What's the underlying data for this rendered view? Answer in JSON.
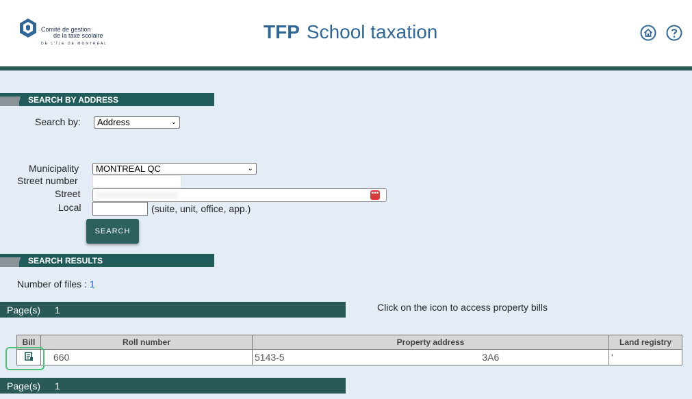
{
  "header": {
    "logo_line1": "Comité de gestion",
    "logo_line2": "de la taxe scolaire",
    "logo_line3": "DE L'ÎLE DE MONTRÉAL",
    "title_abbr": "TFP",
    "title_text": "School taxation"
  },
  "search": {
    "section_title": "SEARCH BY ADDRESS",
    "search_by_label": "Search by:",
    "search_by_value": "Address",
    "municipality_label": "Municipality",
    "municipality_value": "MONTREAL QC",
    "street_number_label": "Street number",
    "street_label": "Street",
    "local_label": "Local",
    "local_hint": "(suite, unit, office, app.)",
    "search_button": "SEARCH"
  },
  "results": {
    "section_title": "SEARCH RESULTS",
    "files_label": "Number of files :",
    "files_count": "1",
    "pages_label": "Page(s)",
    "pages_value": "1",
    "hint": "Click on the icon to access property bills",
    "columns": [
      "Bill",
      "Roll number",
      "Property address",
      "Land registry"
    ],
    "rows": [
      {
        "roll_number": "660",
        "address_start": "5143-5",
        "address_end": "3A6",
        "land_registry": "'"
      }
    ]
  },
  "colors": {
    "accent": "#1f5b59",
    "title": "#2f6898",
    "highlight": "#4fc07a"
  }
}
